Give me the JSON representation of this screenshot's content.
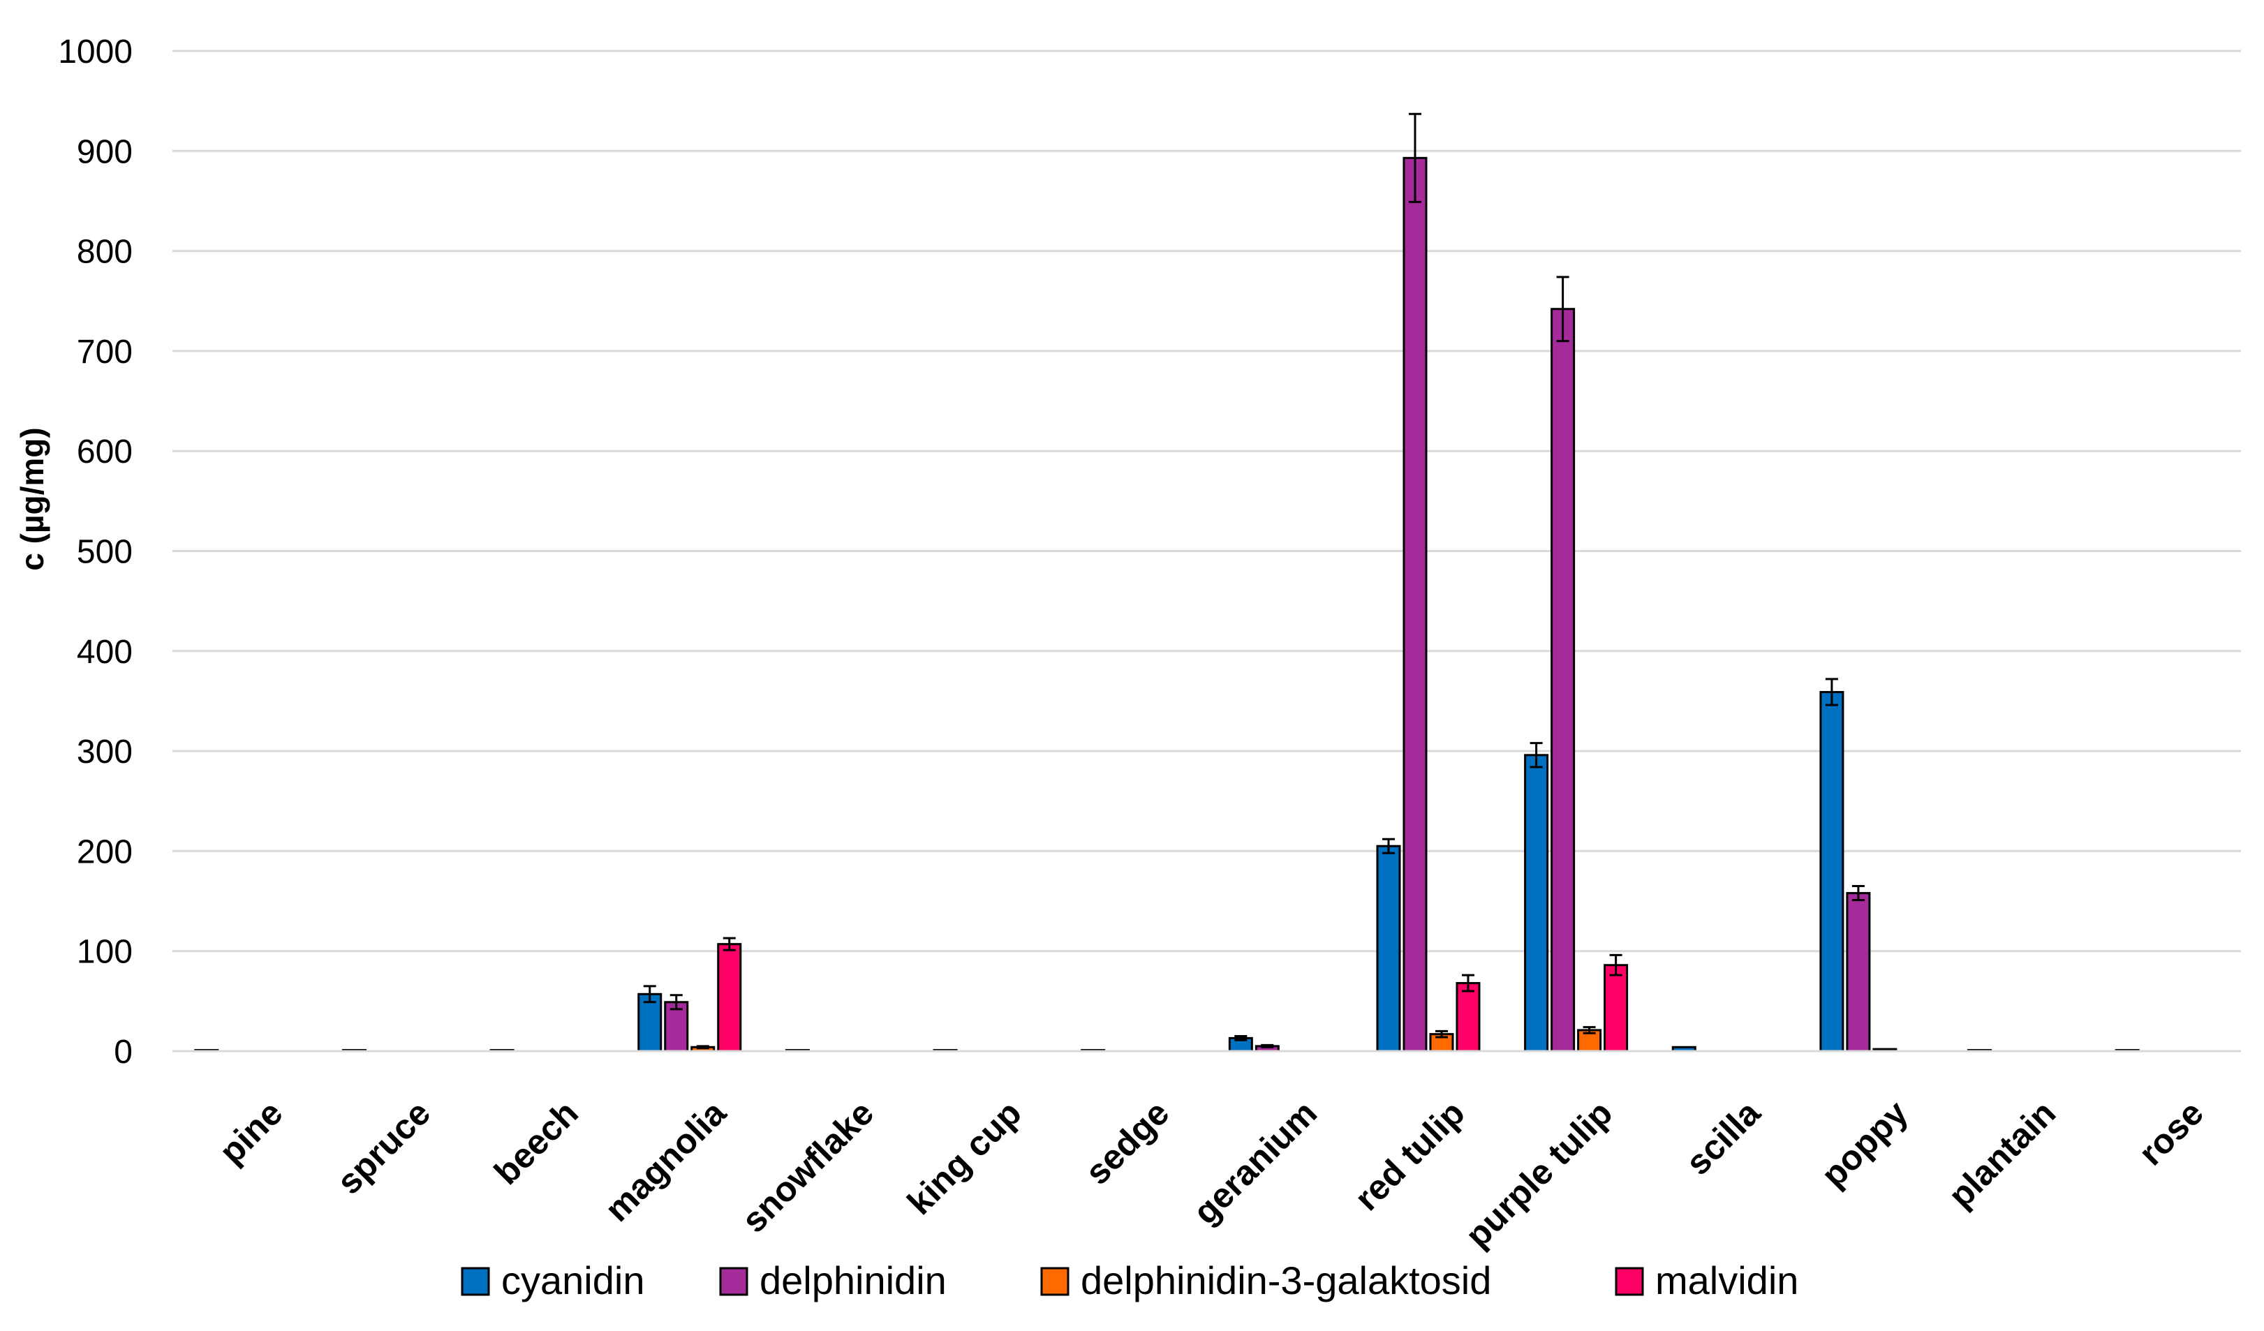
{
  "chart_data": {
    "type": "bar",
    "title": "",
    "xlabel": "",
    "ylabel": "c (µg/mg)",
    "ylim": [
      0,
      1000
    ],
    "yticks": [
      0,
      100,
      200,
      300,
      400,
      500,
      600,
      700,
      800,
      900,
      1000
    ],
    "grid": true,
    "legend_position": "bottom",
    "categories": [
      "pine",
      "spruce",
      "beech",
      "magnolia",
      "snowflake",
      "king cup",
      "sedge",
      "geranium",
      "red tulip",
      "purple tulip",
      "scilla",
      "poppy",
      "plantain",
      "rose"
    ],
    "series": [
      {
        "name": "cyanidin",
        "color": "#0070C0",
        "values": [
          0.5,
          0.5,
          0.5,
          57,
          0.5,
          0.5,
          0.5,
          13,
          205,
          296,
          4,
          359,
          0.5,
          0.5
        ],
        "errors": [
          0,
          0,
          0,
          8,
          0,
          0,
          0,
          2,
          7,
          12,
          0,
          13,
          0,
          0
        ]
      },
      {
        "name": "delphinidin",
        "color": "#A52A9A",
        "values": [
          0,
          0,
          0,
          49,
          0,
          0,
          0,
          5,
          893,
          742,
          0,
          158,
          0,
          0
        ],
        "errors": [
          0,
          0,
          0,
          7,
          0,
          0,
          0,
          1,
          44,
          32,
          0,
          7,
          0,
          0
        ]
      },
      {
        "name": "delphinidin-3-galaktosid",
        "color": "#FF6A00",
        "values": [
          0,
          0,
          0,
          4,
          0,
          0,
          0,
          0,
          17,
          21,
          0,
          2,
          0,
          0
        ],
        "errors": [
          0,
          0,
          0,
          1,
          0,
          0,
          0,
          0,
          3,
          3,
          0,
          0,
          0,
          0
        ]
      },
      {
        "name": "malvidin",
        "color": "#FF0066",
        "values": [
          0,
          0,
          0,
          107,
          0,
          0,
          0,
          0,
          68,
          86,
          0,
          0,
          0,
          0
        ],
        "errors": [
          0,
          0,
          0,
          6,
          0,
          0,
          0,
          0,
          8,
          10,
          0,
          0,
          0,
          0
        ]
      }
    ]
  }
}
